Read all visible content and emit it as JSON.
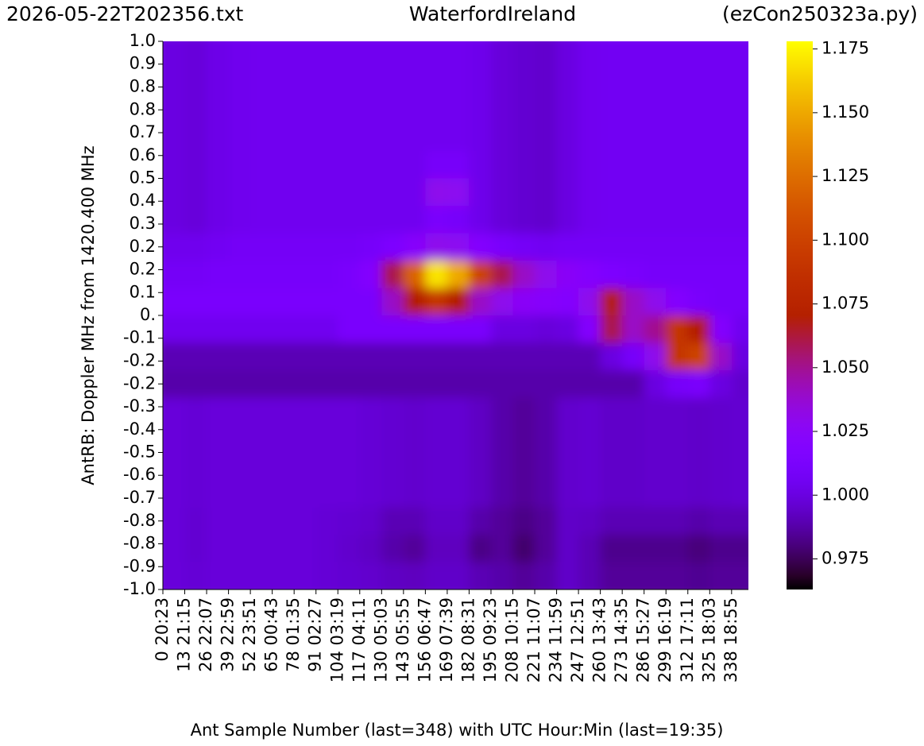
{
  "chart_data": {
    "type": "heatmap",
    "title_left": "2026-05-22T202356.txt",
    "title": "WaterfordIreland",
    "title_right": "(ezCon250323a.py)",
    "xlabel": "Ant Sample Number (last=348) with UTC Hour:Min (last=19:35)",
    "ylabel": "AntRB:  Doppler MHz from 1420.400 MHz",
    "colormap": "gnuplot",
    "xlim": [
      0,
      348
    ],
    "ylim": [
      -1,
      1
    ],
    "clim": [
      0.963,
      1.178
    ],
    "xticks": [
      {
        "value": 0,
        "label": "0   20:23"
      },
      {
        "value": 13,
        "label": "13   21:15"
      },
      {
        "value": 26,
        "label": "26   22:07"
      },
      {
        "value": 39,
        "label": "39   22:59"
      },
      {
        "value": 52,
        "label": "52   23:51"
      },
      {
        "value": 65,
        "label": "65   00:43"
      },
      {
        "value": 78,
        "label": "78   01:35"
      },
      {
        "value": 91,
        "label": "91   02:27"
      },
      {
        "value": 104,
        "label": "104   03:19"
      },
      {
        "value": 117,
        "label": "117   04:11"
      },
      {
        "value": 130,
        "label": "130   05:03"
      },
      {
        "value": 143,
        "label": "143   05:55"
      },
      {
        "value": 156,
        "label": "156   06:47"
      },
      {
        "value": 169,
        "label": "169   07:39"
      },
      {
        "value": 182,
        "label": "182   08:31"
      },
      {
        "value": 195,
        "label": "195   09:23"
      },
      {
        "value": 208,
        "label": "208   10:15"
      },
      {
        "value": 221,
        "label": "221   11:07"
      },
      {
        "value": 234,
        "label": "234   11:59"
      },
      {
        "value": 247,
        "label": "247   12:51"
      },
      {
        "value": 260,
        "label": "260   13:43"
      },
      {
        "value": 273,
        "label": "273   14:35"
      },
      {
        "value": 286,
        "label": "286   15:27"
      },
      {
        "value": 299,
        "label": "299   16:19"
      },
      {
        "value": 312,
        "label": "312   17:11"
      },
      {
        "value": 325,
        "label": "325   18:03"
      },
      {
        "value": 338,
        "label": "338   18:55"
      }
    ],
    "yticks": [
      {
        "value": 1,
        "label": "1.0"
      },
      {
        "value": 0.9167,
        "label": "0.9"
      },
      {
        "value": 0.8333,
        "label": "0.8"
      },
      {
        "value": 0.75,
        "label": "0.8"
      },
      {
        "value": 0.6667,
        "label": "0.7"
      },
      {
        "value": 0.5833,
        "label": "0.6"
      },
      {
        "value": 0.5,
        "label": "0.5"
      },
      {
        "value": 0.4167,
        "label": "0.4"
      },
      {
        "value": 0.3333,
        "label": "0.3"
      },
      {
        "value": 0.25,
        "label": "0.2"
      },
      {
        "value": 0.1667,
        "label": "0.2"
      },
      {
        "value": 0.0833,
        "label": "0.1"
      },
      {
        "value": 0,
        "label": "0."
      },
      {
        "value": -0.0833,
        "label": "-0.1"
      },
      {
        "value": -0.1667,
        "label": "-0.2"
      },
      {
        "value": -0.25,
        "label": "-0.2"
      },
      {
        "value": -0.3333,
        "label": "-0.3"
      },
      {
        "value": -0.4167,
        "label": "-0.4"
      },
      {
        "value": -0.5,
        "label": "-0.5"
      },
      {
        "value": -0.5833,
        "label": "-0.6"
      },
      {
        "value": -0.6667,
        "label": "-0.7"
      },
      {
        "value": -0.75,
        "label": "-0.8"
      },
      {
        "value": -0.8333,
        "label": "-0.8"
      },
      {
        "value": -0.9167,
        "label": "-0.9"
      },
      {
        "value": -1,
        "label": "-1.0"
      }
    ],
    "cticks": [
      0.975,
      {
        "value": 1,
        "label": "1.000"
      },
      1.025,
      {
        "value": 1.05,
        "label": "1.050"
      },
      1.075,
      {
        "value": 1.1,
        "label": "1.100"
      },
      1.125,
      {
        "value": 1.15,
        "label": "1.150"
      },
      1.175
    ],
    "x": [
      0,
      13,
      26,
      39,
      52,
      65,
      78,
      91,
      104,
      117,
      130,
      143,
      156,
      169,
      182,
      195,
      208,
      221,
      234,
      247,
      260,
      273,
      286,
      299,
      312,
      325,
      338
    ],
    "y": [
      0.95,
      0.85,
      0.75,
      0.65,
      0.55,
      0.45,
      0.35,
      0.25,
      0.15,
      0.05,
      -0.05,
      -0.15,
      -0.25,
      -0.35,
      -0.45,
      -0.55,
      -0.65,
      -0.75,
      -0.85,
      -0.95
    ],
    "z": [
      [
        1.0,
        0.998,
        1.002,
        1.004,
        1.005,
        1.005,
        1.005,
        1.005,
        1.005,
        1.005,
        1.005,
        1.005,
        1.005,
        1.005,
        1.003,
        0.998,
        0.996,
        0.995,
        1.0,
        1.005,
        1.006,
        1.006,
        1.006,
        1.006,
        1.006,
        1.006,
        1.006
      ],
      [
        1.0,
        0.998,
        1.002,
        1.004,
        1.005,
        1.005,
        1.005,
        1.005,
        1.005,
        1.005,
        1.005,
        1.005,
        1.005,
        1.005,
        1.003,
        0.998,
        0.996,
        0.995,
        1.0,
        1.005,
        1.006,
        1.006,
        1.006,
        1.006,
        1.006,
        1.006,
        1.006
      ],
      [
        1.0,
        0.998,
        1.002,
        1.004,
        1.005,
        1.005,
        1.005,
        1.005,
        1.005,
        1.005,
        1.005,
        1.005,
        1.005,
        1.005,
        1.003,
        0.998,
        0.996,
        0.995,
        1.0,
        1.005,
        1.006,
        1.006,
        1.006,
        1.006,
        1.006,
        1.006,
        1.006
      ],
      [
        1.0,
        0.998,
        1.002,
        1.004,
        1.005,
        1.005,
        1.005,
        1.005,
        1.005,
        1.005,
        1.005,
        1.005,
        1.005,
        1.005,
        1.003,
        0.998,
        0.996,
        0.995,
        1.0,
        1.005,
        1.006,
        1.006,
        1.006,
        1.006,
        1.006,
        1.006,
        1.006
      ],
      [
        1.0,
        0.998,
        1.002,
        1.004,
        1.005,
        1.005,
        1.005,
        1.005,
        1.005,
        1.005,
        1.005,
        1.005,
        1.01,
        1.01,
        1.003,
        0.998,
        0.996,
        0.995,
        1.0,
        1.005,
        1.006,
        1.006,
        1.006,
        1.006,
        1.006,
        1.006,
        1.006
      ],
      [
        1.0,
        0.998,
        1.002,
        1.004,
        1.005,
        1.005,
        1.005,
        1.005,
        1.005,
        1.005,
        1.005,
        1.005,
        1.03,
        1.028,
        1.003,
        0.998,
        0.996,
        0.995,
        1.0,
        1.005,
        1.006,
        1.006,
        1.006,
        1.006,
        1.006,
        1.006,
        1.006
      ],
      [
        1.0,
        0.998,
        1.002,
        1.004,
        1.005,
        1.005,
        1.005,
        1.005,
        1.005,
        1.005,
        1.005,
        1.005,
        1.012,
        1.01,
        1.003,
        0.998,
        0.996,
        0.995,
        1.0,
        1.005,
        1.006,
        1.006,
        1.006,
        1.006,
        1.006,
        1.006,
        1.006
      ],
      [
        1.004,
        1.004,
        1.006,
        1.008,
        1.008,
        1.008,
        1.008,
        1.008,
        1.008,
        1.01,
        1.015,
        1.022,
        1.03,
        1.028,
        1.02,
        1.012,
        1.008,
        1.006,
        1.008,
        1.008,
        1.008,
        1.008,
        1.008,
        1.008,
        1.008,
        1.008,
        1.008
      ],
      [
        1.008,
        1.008,
        1.01,
        1.01,
        1.01,
        1.01,
        1.01,
        1.01,
        1.012,
        1.02,
        1.06,
        1.12,
        1.17,
        1.15,
        1.1,
        1.06,
        1.04,
        1.03,
        1.025,
        1.02,
        1.015,
        1.012,
        1.01,
        1.01,
        1.01,
        1.01,
        1.01
      ],
      [
        1.012,
        1.012,
        1.012,
        1.012,
        1.012,
        1.012,
        1.012,
        1.012,
        1.012,
        1.012,
        1.04,
        1.07,
        1.09,
        1.07,
        1.04,
        1.03,
        1.025,
        1.022,
        1.02,
        1.03,
        1.07,
        1.04,
        1.03,
        1.02,
        1.012,
        1.01,
        1.01
      ],
      [
        1.005,
        1.005,
        1.005,
        1.005,
        1.005,
        1.005,
        1.005,
        1.005,
        1.012,
        1.012,
        1.012,
        1.012,
        1.012,
        1.012,
        1.012,
        1.0,
        1.0,
        0.998,
        1.0,
        1.02,
        1.06,
        1.04,
        1.05,
        1.09,
        1.07,
        1.02,
        1.005
      ],
      [
        0.99,
        0.99,
        0.99,
        0.99,
        0.99,
        0.99,
        0.99,
        0.99,
        0.99,
        0.99,
        0.99,
        0.99,
        0.99,
        0.99,
        0.99,
        0.99,
        0.99,
        0.99,
        0.99,
        0.99,
        1.0,
        1.01,
        1.03,
        1.09,
        1.1,
        1.04,
        1.0
      ],
      [
        0.988,
        0.988,
        0.988,
        0.988,
        0.988,
        0.988,
        0.988,
        0.988,
        0.988,
        0.988,
        0.988,
        0.988,
        0.988,
        0.988,
        0.988,
        0.988,
        0.988,
        0.988,
        0.988,
        0.988,
        0.988,
        0.988,
        1.0,
        1.01,
        1.012,
        1.0,
        0.995
      ],
      [
        0.998,
        0.997,
        0.998,
        0.998,
        0.998,
        0.998,
        0.998,
        0.998,
        0.998,
        0.997,
        0.996,
        0.995,
        0.996,
        0.996,
        0.993,
        0.988,
        0.985,
        0.988,
        0.995,
        0.996,
        0.994,
        0.994,
        0.995,
        0.995,
        0.994,
        0.995,
        0.996
      ],
      [
        0.998,
        0.997,
        0.998,
        0.998,
        0.998,
        0.998,
        0.998,
        0.998,
        0.998,
        0.997,
        0.996,
        0.995,
        0.996,
        0.996,
        0.993,
        0.988,
        0.985,
        0.988,
        0.995,
        0.996,
        0.994,
        0.994,
        0.995,
        0.995,
        0.994,
        0.995,
        0.996
      ],
      [
        0.998,
        0.997,
        0.998,
        0.998,
        0.998,
        0.998,
        0.998,
        0.998,
        0.998,
        0.997,
        0.996,
        0.995,
        0.996,
        0.996,
        0.993,
        0.988,
        0.985,
        0.988,
        0.995,
        0.996,
        0.994,
        0.994,
        0.995,
        0.995,
        0.994,
        0.995,
        0.996
      ],
      [
        0.998,
        0.997,
        0.998,
        0.998,
        0.998,
        0.998,
        0.998,
        0.998,
        0.998,
        0.997,
        0.996,
        0.995,
        0.996,
        0.996,
        0.993,
        0.988,
        0.985,
        0.988,
        0.995,
        0.996,
        0.994,
        0.994,
        0.995,
        0.995,
        0.994,
        0.995,
        0.996
      ],
      [
        0.998,
        0.996,
        0.998,
        0.998,
        0.998,
        0.998,
        0.998,
        0.997,
        0.996,
        0.995,
        0.99,
        0.99,
        0.994,
        0.994,
        0.988,
        0.985,
        0.982,
        0.985,
        0.994,
        0.993,
        0.99,
        0.99,
        0.99,
        0.99,
        0.988,
        0.99,
        0.99
      ],
      [
        0.998,
        0.996,
        0.998,
        0.998,
        0.998,
        0.998,
        0.998,
        0.997,
        0.995,
        0.993,
        0.988,
        0.985,
        0.992,
        0.992,
        0.982,
        0.985,
        0.978,
        0.985,
        0.994,
        0.99,
        0.983,
        0.983,
        0.983,
        0.983,
        0.98,
        0.983,
        0.983
      ],
      [
        0.998,
        0.997,
        0.998,
        0.998,
        0.998,
        0.998,
        0.998,
        0.997,
        0.996,
        0.995,
        0.993,
        0.992,
        0.994,
        0.994,
        0.99,
        0.988,
        0.985,
        0.988,
        0.994,
        0.99,
        0.985,
        0.985,
        0.985,
        0.985,
        0.984,
        0.985,
        0.985
      ]
    ]
  }
}
